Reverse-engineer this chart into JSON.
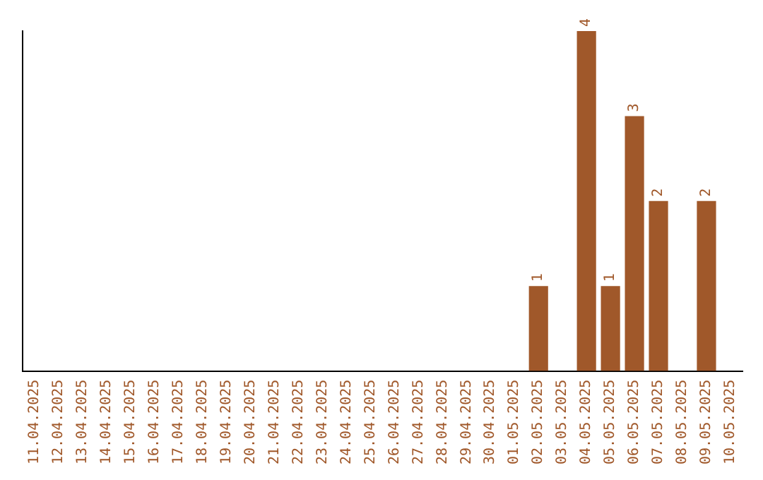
{
  "chart_data": {
    "type": "bar",
    "categories": [
      "11.04.2025",
      "12.04.2025",
      "13.04.2025",
      "14.04.2025",
      "15.04.2025",
      "16.04.2025",
      "17.04.2025",
      "18.04.2025",
      "19.04.2025",
      "20.04.2025",
      "21.04.2025",
      "22.04.2025",
      "23.04.2025",
      "24.04.2025",
      "25.04.2025",
      "26.04.2025",
      "27.04.2025",
      "28.04.2025",
      "29.04.2025",
      "30.04.2025",
      "01.05.2025",
      "02.05.2025",
      "03.05.2025",
      "04.05.2025",
      "05.05.2025",
      "06.05.2025",
      "07.05.2025",
      "08.05.2025",
      "09.05.2025",
      "10.05.2025"
    ],
    "values": [
      null,
      null,
      null,
      null,
      null,
      null,
      null,
      null,
      null,
      null,
      null,
      null,
      null,
      null,
      null,
      null,
      null,
      null,
      null,
      null,
      null,
      1,
      null,
      4,
      1,
      3,
      2,
      null,
      2,
      null
    ],
    "data_labels": true,
    "color": "#a0582a",
    "grid": false,
    "legend": false,
    "tick_labels": "x"
  }
}
